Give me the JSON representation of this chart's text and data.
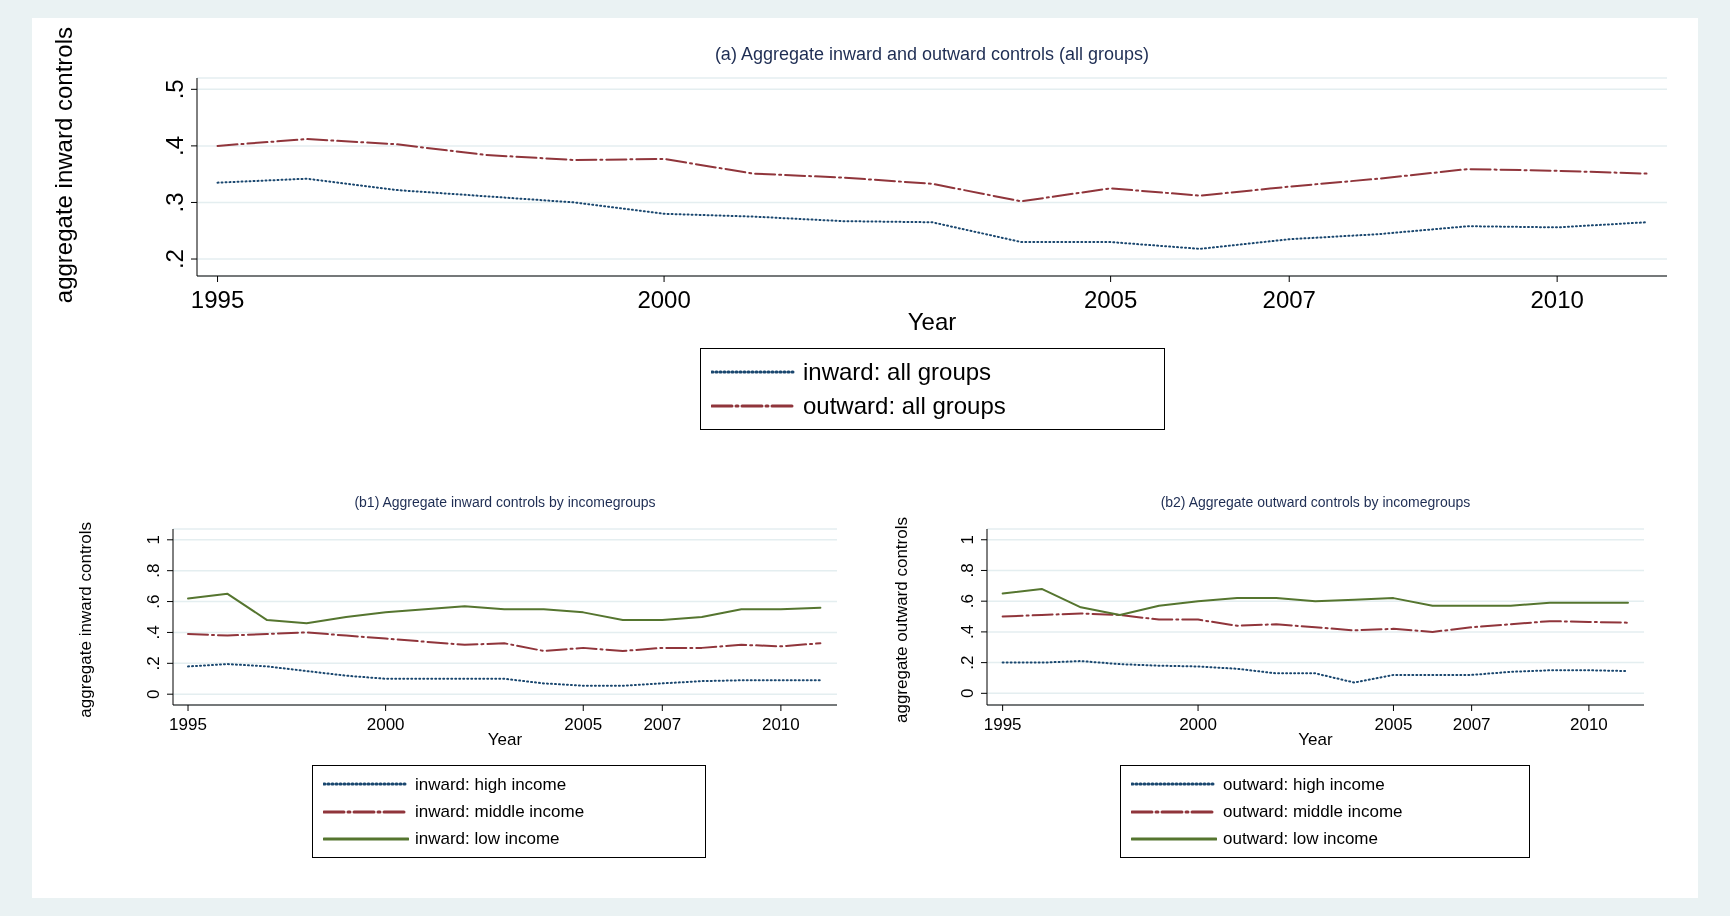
{
  "chart_data": [
    {
      "type": "line",
      "title": "(a) Aggregate inward and outward controls (all groups)",
      "xlabel": "Year",
      "ylabel": "aggregate inward controls",
      "x": [
        1995,
        1996,
        1997,
        1998,
        1999,
        2000,
        2001,
        2002,
        2003,
        2004,
        2005,
        2006,
        2007,
        2008,
        2009,
        2010,
        2011
      ],
      "series": [
        {
          "name": "inward: all groups",
          "color": "#1a476f",
          "line_style": "dotted",
          "values": [
            0.335,
            0.342,
            0.322,
            0.311,
            0.3,
            0.28,
            0.275,
            0.267,
            0.265,
            0.23,
            0.23,
            0.218,
            0.235,
            0.244,
            0.258,
            0.256,
            0.265
          ]
        },
        {
          "name": "outward: all groups",
          "color": "#90353b",
          "line_style": "dashed",
          "values": [
            0.4,
            0.412,
            0.403,
            0.384,
            0.375,
            0.377,
            0.351,
            0.344,
            0.333,
            0.302,
            0.325,
            0.312,
            0.328,
            0.342,
            0.359,
            0.356,
            0.351
          ]
        }
      ],
      "xlim": [
        1994.77,
        2011.23
      ],
      "ylim": [
        0.17,
        0.52
      ],
      "xticks": [
        1995,
        2000,
        2005,
        2007,
        2010
      ],
      "yticks": [
        {
          "value": 0.2,
          "label": ".2"
        },
        {
          "value": 0.3,
          "label": ".3"
        },
        {
          "value": 0.4,
          "label": ".4"
        },
        {
          "value": 0.5,
          "label": ".5"
        }
      ],
      "grid": "y",
      "legend": "bottom"
    },
    {
      "type": "line",
      "title": "(b1) Aggregate inward controls by incomegroups",
      "xlabel": "Year",
      "ylabel": "aggregate inward controls",
      "x": [
        1995,
        1996,
        1997,
        1998,
        1999,
        2000,
        2001,
        2002,
        2003,
        2004,
        2005,
        2006,
        2007,
        2008,
        2009,
        2010,
        2011
      ],
      "series": [
        {
          "name": "inward: high income",
          "color": "#1a476f",
          "line_style": "dotted",
          "values": [
            0.18,
            0.195,
            0.18,
            0.15,
            0.12,
            0.1,
            0.1,
            0.1,
            0.1,
            0.07,
            0.055,
            0.055,
            0.07,
            0.085,
            0.09,
            0.09,
            0.09
          ]
        },
        {
          "name": "inward: middle income",
          "color": "#90353b",
          "line_style": "dashed",
          "values": [
            0.39,
            0.38,
            0.39,
            0.4,
            0.38,
            0.36,
            0.34,
            0.32,
            0.33,
            0.28,
            0.3,
            0.28,
            0.3,
            0.3,
            0.32,
            0.31,
            0.33
          ]
        },
        {
          "name": "inward: low income",
          "color": "#55752f",
          "line_style": "solid",
          "values": [
            0.62,
            0.65,
            0.48,
            0.46,
            0.5,
            0.53,
            0.55,
            0.57,
            0.55,
            0.55,
            0.53,
            0.48,
            0.48,
            0.5,
            0.55,
            0.55,
            0.56
          ]
        }
      ],
      "xlim": [
        1994.62,
        2011.42
      ],
      "ylim": [
        -0.07,
        1.07
      ],
      "xticks": [
        1995,
        2000,
        2005,
        2007,
        2010
      ],
      "yticks": [
        {
          "value": 0,
          "label": "0"
        },
        {
          "value": 0.2,
          "label": ".2"
        },
        {
          "value": 0.4,
          "label": ".4"
        },
        {
          "value": 0.6,
          "label": ".6"
        },
        {
          "value": 0.8,
          "label": ".8"
        },
        {
          "value": 1,
          "label": "1"
        }
      ],
      "grid": "y",
      "legend": "bottom"
    },
    {
      "type": "line",
      "title": "(b2) Aggregate outward controls by incomegroups",
      "xlabel": "Year",
      "ylabel": "aggregate outward controls",
      "x": [
        1995,
        1996,
        1997,
        1998,
        1999,
        2000,
        2001,
        2002,
        2003,
        2004,
        2005,
        2006,
        2007,
        2008,
        2009,
        2010,
        2011
      ],
      "series": [
        {
          "name": "outward: high income",
          "color": "#1a476f",
          "line_style": "dotted",
          "values": [
            0.2,
            0.2,
            0.21,
            0.19,
            0.18,
            0.175,
            0.16,
            0.13,
            0.13,
            0.07,
            0.12,
            0.12,
            0.12,
            0.14,
            0.15,
            0.15,
            0.145
          ]
        },
        {
          "name": "outward: middle income",
          "color": "#90353b",
          "line_style": "dashed",
          "values": [
            0.5,
            0.51,
            0.52,
            0.51,
            0.48,
            0.48,
            0.44,
            0.45,
            0.43,
            0.41,
            0.42,
            0.4,
            0.43,
            0.45,
            0.47,
            0.465,
            0.46
          ]
        },
        {
          "name": "outward: low income",
          "color": "#55752f",
          "line_style": "solid",
          "values": [
            0.65,
            0.68,
            0.56,
            0.51,
            0.57,
            0.6,
            0.62,
            0.62,
            0.6,
            0.61,
            0.62,
            0.57,
            0.57,
            0.57,
            0.59,
            0.59,
            0.59
          ]
        }
      ],
      "xlim": [
        1994.6,
        2011.41
      ],
      "ylim": [
        -0.076,
        1.07
      ],
      "xticks": [
        1995,
        2000,
        2005,
        2007,
        2010
      ],
      "yticks": [
        {
          "value": 0,
          "label": "0"
        },
        {
          "value": 0.2,
          "label": ".2"
        },
        {
          "value": 0.4,
          "label": ".4"
        },
        {
          "value": 0.6,
          "label": ".6"
        },
        {
          "value": 0.8,
          "label": ".8"
        },
        {
          "value": 1,
          "label": "1"
        }
      ],
      "grid": "y",
      "legend": "bottom"
    }
  ]
}
